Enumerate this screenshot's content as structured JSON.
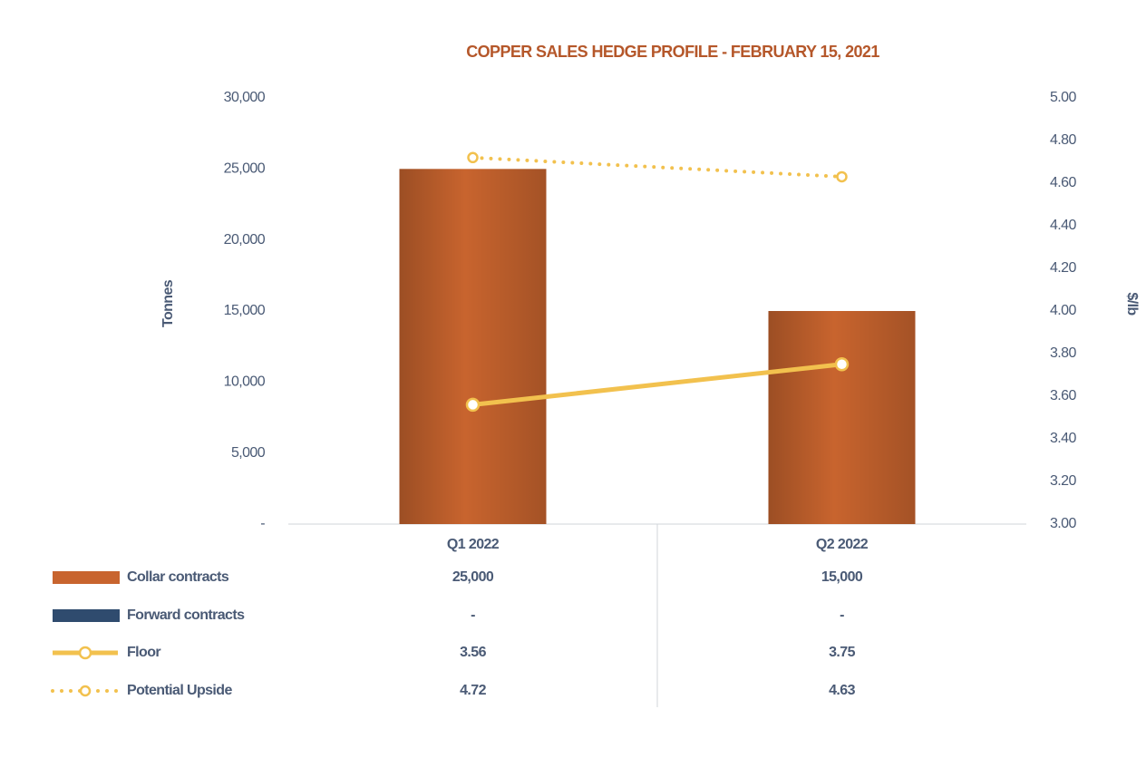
{
  "chart_data": {
    "type": "bar-line",
    "title": "COPPER SALES HEDGE PROFILE - FEBRUARY 15, 2021",
    "y_label": "Tonnes",
    "y2_label": "$/lb",
    "categories": [
      "Q1 2022",
      "Q2 2022"
    ],
    "series": [
      {
        "name": "Collar contracts",
        "type": "bar",
        "color": "#c8642e",
        "values": [
          25000,
          15000
        ],
        "value_labels": [
          "25,000",
          "15,000"
        ]
      },
      {
        "name": "Forward contracts",
        "type": "bar",
        "color": "#2f4b6e",
        "values": [
          0,
          0
        ],
        "value_labels": [
          "-",
          "-"
        ]
      },
      {
        "name": "Floor",
        "type": "line",
        "axis": "y2",
        "color": "#f2c14e",
        "values": [
          3.56,
          3.75
        ]
      },
      {
        "name": "Potential Upside",
        "type": "line",
        "axis": "y2",
        "style": "dotted",
        "color": "#f2c14e",
        "values": [
          4.72,
          4.63
        ]
      }
    ],
    "ylim": [
      0,
      30000
    ],
    "yticks": [
      {
        "value": 0,
        "label": "-"
      },
      {
        "value": 5000,
        "label": "5,000"
      },
      {
        "value": 10000,
        "label": "10,000"
      },
      {
        "value": 15000,
        "label": "15,000"
      },
      {
        "value": 20000,
        "label": "20,000"
      },
      {
        "value": 25000,
        "label": "25,000"
      },
      {
        "value": 30000,
        "label": "30,000"
      }
    ],
    "y2lim": [
      3,
      5
    ],
    "y2ticks": [
      {
        "value": 3,
        "label": "3.00"
      },
      {
        "value": 3.2,
        "label": "3.20"
      },
      {
        "value": 3.4,
        "label": "3.40"
      },
      {
        "value": 3.6,
        "label": "3.60"
      },
      {
        "value": 3.8,
        "label": "3.80"
      },
      {
        "value": 4,
        "label": "4.00"
      },
      {
        "value": 4.2,
        "label": "4.20"
      },
      {
        "value": 4.4,
        "label": "4.40"
      },
      {
        "value": 4.6,
        "label": "4.60"
      },
      {
        "value": 4.8,
        "label": "4.80"
      },
      {
        "value": 5,
        "label": "5.00"
      }
    ]
  }
}
